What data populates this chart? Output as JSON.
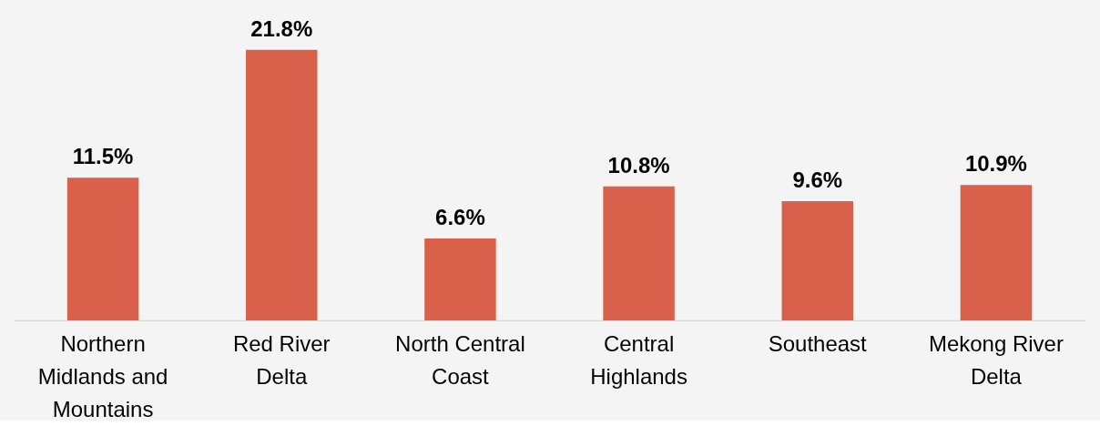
{
  "chart_data": {
    "type": "bar",
    "categories": [
      "Northern Midlands and Mountains",
      "Red River Delta",
      "North Central Coast",
      "Central Highlands",
      "Southeast",
      "Mekong River Delta"
    ],
    "values": [
      11.5,
      21.8,
      6.6,
      10.8,
      9.6,
      10.9
    ],
    "value_labels": [
      "11.5%",
      "21.8%",
      "6.6%",
      "10.8%",
      "9.6%",
      "10.9%"
    ],
    "color": "#d9604a",
    "grid": false
  }
}
